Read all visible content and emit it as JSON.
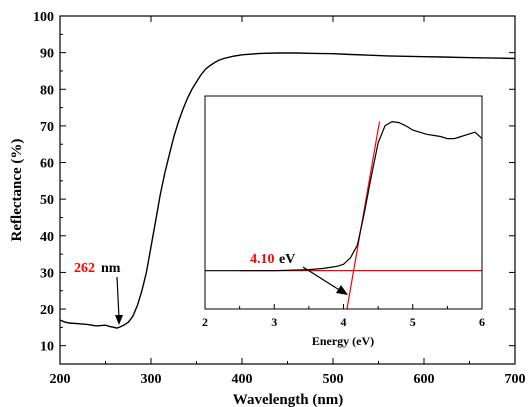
{
  "chart_data": [
    {
      "type": "line",
      "xlabel": "Wavelength (nm)",
      "ylabel": "Reflectance (%)",
      "xlim": [
        200,
        700
      ],
      "ylim": [
        5,
        100
      ],
      "xticks": [
        "200",
        "300",
        "400",
        "500",
        "600",
        "700"
      ],
      "yticks": [
        "10",
        "20",
        "30",
        "40",
        "50",
        "60",
        "70",
        "80",
        "90",
        "100"
      ],
      "line_color": "#000000",
      "series": [
        {
          "x": [
            200,
            205,
            210,
            220,
            230,
            240,
            250,
            255,
            260,
            262,
            265,
            270,
            275,
            280,
            285,
            290,
            295,
            300,
            305,
            310,
            315,
            320,
            325,
            330,
            335,
            340,
            345,
            350,
            355,
            360,
            365,
            370,
            375,
            380,
            390,
            400,
            420,
            440,
            460,
            480,
            500,
            520,
            540,
            560,
            580,
            600,
            620,
            640,
            660,
            680,
            700
          ],
          "y": [
            17,
            16.5,
            16.2,
            16,
            15.8,
            15.4,
            15.6,
            15.2,
            15,
            14.8,
            15,
            15.6,
            16.4,
            18,
            21,
            25,
            30,
            37,
            44,
            51,
            57,
            62,
            67,
            71,
            74.5,
            77.5,
            80,
            82,
            84,
            85.5,
            86.5,
            87.3,
            88,
            88.4,
            89,
            89.4,
            89.8,
            89.9,
            89.9,
            89.8,
            89.7,
            89.5,
            89.3,
            89.1,
            89,
            88.9,
            88.8,
            88.7,
            88.6,
            88.5,
            88.4
          ]
        }
      ],
      "annotations": [
        {
          "value_text": "262",
          "unit_text": " nm",
          "value_color": "#ff0000",
          "x": 262,
          "y": 14.8
        }
      ]
    },
    {
      "type": "line",
      "xlabel": "Energy (eV)",
      "ylabel": "",
      "xlim": [
        2,
        6
      ],
      "ylim": [
        0,
        1
      ],
      "xticks": [
        "2",
        "3",
        "4",
        "5",
        "6"
      ],
      "series": [
        {
          "color": "#000000",
          "x": [
            2,
            2.5,
            3,
            3.5,
            3.7,
            3.9,
            4.0,
            4.1,
            4.2,
            4.3,
            4.4,
            4.5,
            4.6,
            4.7,
            4.8,
            4.9,
            5.0,
            5.1,
            5.2,
            5.3,
            5.4,
            5.5,
            5.6,
            5.7,
            5.8,
            5.9,
            6.0
          ],
          "y": [
            0.18,
            0.18,
            0.18,
            0.185,
            0.19,
            0.2,
            0.21,
            0.24,
            0.3,
            0.45,
            0.62,
            0.78,
            0.86,
            0.88,
            0.875,
            0.86,
            0.84,
            0.83,
            0.82,
            0.815,
            0.81,
            0.8,
            0.8,
            0.81,
            0.82,
            0.83,
            0.8
          ]
        },
        {
          "color": "#ff0000",
          "x": [
            4.05,
            4.52
          ],
          "y": [
            0.0,
            0.88
          ]
        },
        {
          "color": "#ff0000",
          "x": [
            2.5,
            6.0
          ],
          "y": [
            0.18,
            0.18
          ]
        }
      ],
      "annotations": [
        {
          "value_text": "4.10",
          "unit_text": " eV",
          "value_color": "#ff0000",
          "x": 4.1,
          "y": 0.18
        }
      ]
    }
  ]
}
